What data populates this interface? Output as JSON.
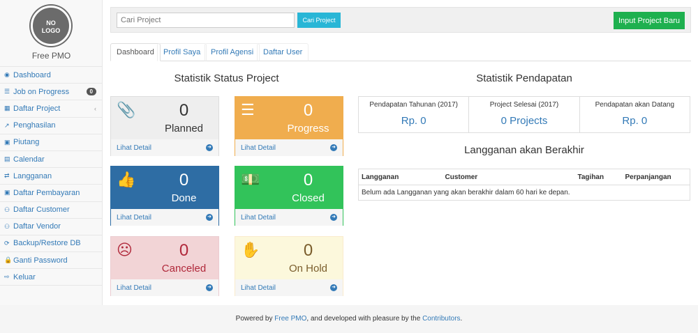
{
  "sidebar": {
    "logo_text": "NO LOGO",
    "brand": "Free PMO",
    "items": [
      {
        "label": "Dashboard",
        "icon": "dashboard-icon",
        "glyph": "◉"
      },
      {
        "label": "Job on Progress",
        "icon": "tasks-icon",
        "glyph": "☰",
        "badge": "0"
      },
      {
        "label": "Daftar Project",
        "icon": "table-icon",
        "glyph": "▦",
        "chevron": "‹"
      },
      {
        "label": "Penghasilan",
        "icon": "line-chart-icon",
        "glyph": "↗"
      },
      {
        "label": "Piutang",
        "icon": "money-icon",
        "glyph": "▣"
      },
      {
        "label": "Calendar",
        "icon": "calendar-icon",
        "glyph": "▤"
      },
      {
        "label": "Langganan",
        "icon": "retweet-icon",
        "glyph": "⇄"
      },
      {
        "label": "Daftar Pembayaran",
        "icon": "money-icon",
        "glyph": "▣"
      },
      {
        "label": "Daftar Customer",
        "icon": "users-icon",
        "glyph": "⚇"
      },
      {
        "label": "Daftar Vendor",
        "icon": "users-icon",
        "glyph": "⚇"
      },
      {
        "label": "Backup/Restore DB",
        "icon": "refresh-icon",
        "glyph": "⟳"
      },
      {
        "label": "Ganti Password",
        "icon": "lock-icon",
        "glyph": "🔒"
      },
      {
        "label": "Keluar",
        "icon": "sign-out-icon",
        "glyph": "⇨"
      }
    ]
  },
  "topbar": {
    "search_placeholder": "Cari Project",
    "search_button": "Cari Project",
    "new_button": "Input Project Baru"
  },
  "tabs": [
    "Dashboard",
    "Profil Saya",
    "Profil Agensi",
    "Daftar User"
  ],
  "status": {
    "title": "Statistik Status Project",
    "detail_label": "Lihat Detail",
    "cards": [
      {
        "label": "Planned",
        "count": "0",
        "icon": "paperclip-icon",
        "glyph": "📎",
        "bg": "#eeeeee",
        "fg": "#333333",
        "border": "#dddddd"
      },
      {
        "label": "Progress",
        "count": "0",
        "icon": "tasks-icon",
        "glyph": "☰",
        "bg": "#f0ad4e",
        "fg": "#ffffff",
        "border": "#f0ad4e"
      },
      {
        "label": "Done",
        "count": "0",
        "icon": "thumbs-up-icon",
        "glyph": "👍",
        "bg": "#2e6da4",
        "fg": "#ffffff",
        "border": "#2e6da4"
      },
      {
        "label": "Closed",
        "count": "0",
        "icon": "money-icon",
        "glyph": "💵",
        "bg": "#32c35a",
        "fg": "#ffffff",
        "border": "#32c35a"
      },
      {
        "label": "Canceled",
        "count": "0",
        "icon": "frown-icon",
        "glyph": "☹",
        "bg": "#f2d4d6",
        "fg": "#b0283a",
        "border": "#ebccd1"
      },
      {
        "label": "On Hold",
        "count": "0",
        "icon": "hand-icon",
        "glyph": "✋",
        "bg": "#fcf8dc",
        "fg": "#7a5d2c",
        "border": "#faebcc"
      }
    ]
  },
  "income": {
    "title": "Statistik Pendapatan",
    "stats": [
      {
        "label": "Pendapatan Tahunan (2017)",
        "value": "Rp. 0"
      },
      {
        "label": "Project Selesai (2017)",
        "value": "0 Projects"
      },
      {
        "label": "Pendapatan akan Datang",
        "value": "Rp. 0"
      }
    ]
  },
  "expiring": {
    "title": "Langganan akan Berakhir",
    "columns": [
      "Langganan",
      "Customer",
      "Tagihan",
      "Perpanjangan"
    ],
    "empty": "Belum ada Langganan yang akan berakhir dalam 60 hari ke depan."
  },
  "footer": {
    "prefix": "Powered by ",
    "link1": "Free PMO",
    "middle": ", and developed with pleasure by the ",
    "link2": "Contributors",
    "suffix": "."
  }
}
